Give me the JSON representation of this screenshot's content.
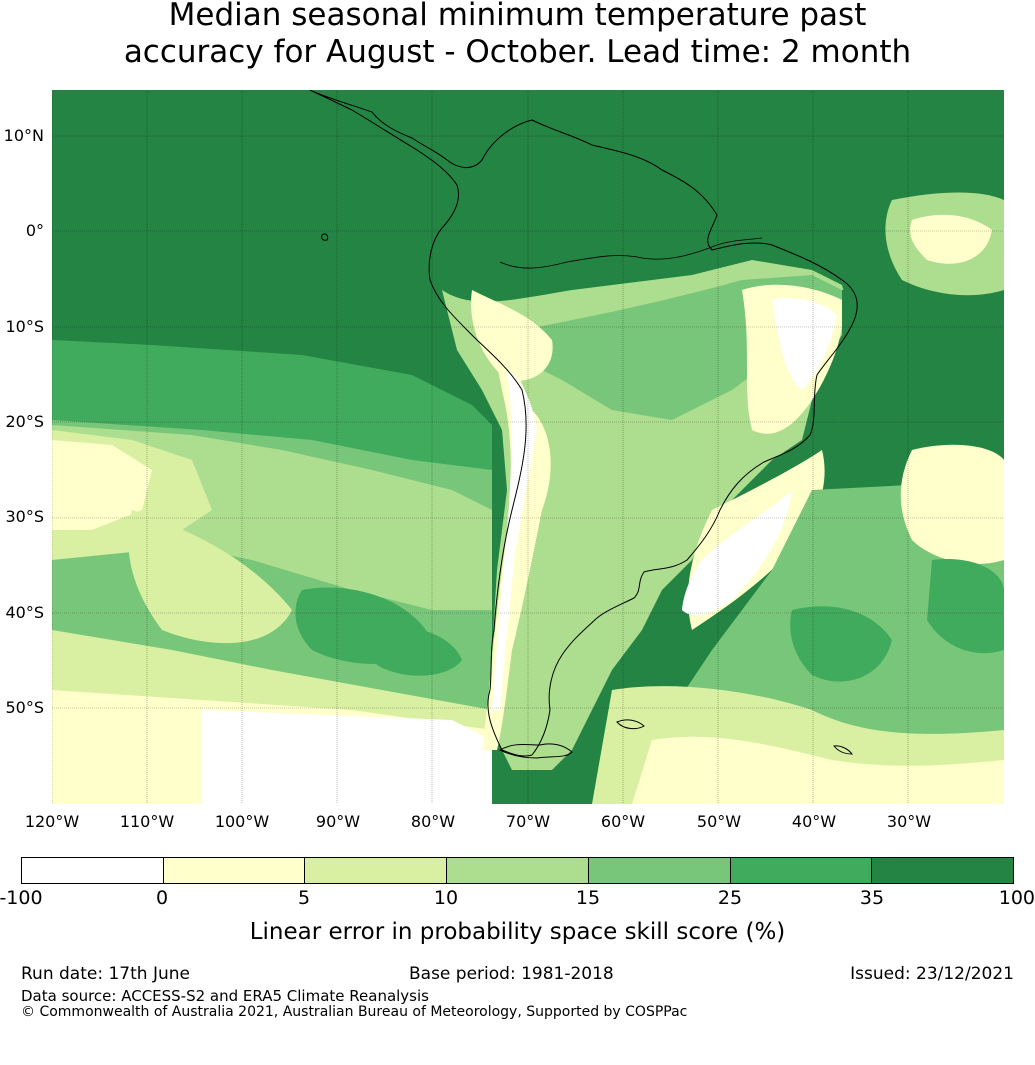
{
  "title": {
    "line1": "Median seasonal minimum temperature past",
    "line2": "accuracy for August - October. Lead time: 2 month"
  },
  "map": {
    "lat_ticks": [
      "10°N",
      "0°",
      "10°S",
      "20°S",
      "30°S",
      "40°S",
      "50°S"
    ],
    "lon_ticks": [
      "120°W",
      "110°W",
      "100°W",
      "90°W",
      "80°W",
      "70°W",
      "60°W",
      "50°W",
      "40°W",
      "30°W"
    ],
    "extent": {
      "lon": [
        -120,
        -20
      ],
      "lat": [
        -60,
        15
      ]
    },
    "gridlines": true,
    "ocean_dominant_color": "#238443"
  },
  "legend": {
    "ticks": [
      "-100",
      "0",
      "5",
      "10",
      "15",
      "25",
      "35",
      "100"
    ],
    "colors": [
      "#ffffff",
      "#ffffcc",
      "#d9f0a3",
      "#addd8e",
      "#78c679",
      "#41ab5d",
      "#238443"
    ],
    "label": "Linear error in probability space skill score (%)"
  },
  "footer": {
    "run_date": "Run date: 17th June",
    "base_period": "Base period: 1981-2018",
    "issued": "Issued: 23/12/2021",
    "data_source": "Data source: ACCESS-S2 and ERA5 Climate Reanalysis",
    "copyright": "© Commonwealth of Australia 2021, Australian Bureau of Meteorology, Supported by COSPPac"
  }
}
